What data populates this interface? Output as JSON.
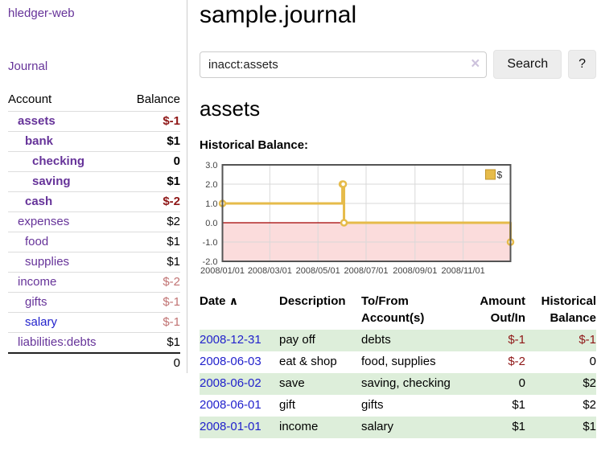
{
  "colors": {
    "purple": "#663399",
    "blue-link": "#2222cc",
    "neg-strong": "#8f1717",
    "neg-muted": "#c17373",
    "row-green": "#ddeeda",
    "chart-line": "#e6bb4a",
    "chart-line-border": "#c2952b",
    "chart-negative-fill": "#fbdcdc",
    "chart-zero-line": "#a40000",
    "chart-grid": "#d9d9d9",
    "chart-border": "#545454"
  },
  "app": {
    "brand": "hledger-web",
    "nav_journal": "Journal"
  },
  "sidebar": {
    "accounts_header": {
      "account": "Account",
      "balance": "Balance"
    },
    "accounts": [
      {
        "name": "assets",
        "balance": "$-1"
      },
      {
        "name": "bank",
        "balance": "$1"
      },
      {
        "name": "checking",
        "balance": "0"
      },
      {
        "name": "saving",
        "balance": "$1"
      },
      {
        "name": "cash",
        "balance": "$-2"
      },
      {
        "name": "expenses",
        "balance": "$2"
      },
      {
        "name": "food",
        "balance": "$1"
      },
      {
        "name": "supplies",
        "balance": "$1"
      },
      {
        "name": "income",
        "balance": "$-2"
      },
      {
        "name": "gifts",
        "balance": "$-1"
      },
      {
        "name": "salary",
        "balance": "$-1"
      },
      {
        "name": "liabilities:debts",
        "balance": "$1"
      }
    ],
    "total": "0"
  },
  "main": {
    "title": "sample.journal",
    "search": {
      "value": "inacct:assets",
      "clear_icon": "×",
      "button": "Search",
      "help": "?"
    },
    "account_heading": "assets",
    "chart_title": "Historical Balance:"
  },
  "chart_data": {
    "type": "line",
    "title": "Historical Balance:",
    "legend": "$",
    "legend_position": "top-right",
    "grid": true,
    "ylim": [
      -2,
      3
    ],
    "x_range": [
      "2008-01-01",
      "2008-12-31"
    ],
    "y_ticks": [
      "3.0",
      "2.0",
      "1.0",
      "0.0",
      "-1.0",
      "-2.0"
    ],
    "x_ticks": [
      "2008/01/01",
      "2008/03/01",
      "2008/05/01",
      "2008/07/01",
      "2008/09/01",
      "2008/11/01"
    ],
    "series": [
      {
        "name": "$",
        "points": [
          [
            "2008-01-01",
            1
          ],
          [
            "2008-06-01",
            2
          ],
          [
            "2008-06-02",
            2
          ],
          [
            "2008-06-03",
            0
          ],
          [
            "2008-12-31",
            -1
          ]
        ],
        "interpolation": "step-hold"
      }
    ]
  },
  "table": {
    "headers": {
      "date": "Date",
      "sort_icon": "∧",
      "description": "Description",
      "tofrom_l1": "To/From",
      "tofrom_l2": "Account(s)",
      "amount_l1": "Amount",
      "amount_l2": "Out/In",
      "balance_l1": "Historical",
      "balance_l2": "Balance"
    },
    "rows": [
      {
        "date": "2008-12-31",
        "description": "pay off",
        "accounts": "debts",
        "amount": "$-1",
        "balance": "$-1"
      },
      {
        "date": "2008-06-03",
        "description": "eat & shop",
        "accounts": "food, supplies",
        "amount": "$-2",
        "balance": "0"
      },
      {
        "date": "2008-06-02",
        "description": "save",
        "accounts": "saving, checking",
        "amount": "0",
        "balance": "$2"
      },
      {
        "date": "2008-06-01",
        "description": "gift",
        "accounts": "gifts",
        "amount": "$1",
        "balance": "$2"
      },
      {
        "date": "2008-01-01",
        "description": "income",
        "accounts": "salary",
        "amount": "$1",
        "balance": "$1"
      }
    ]
  }
}
